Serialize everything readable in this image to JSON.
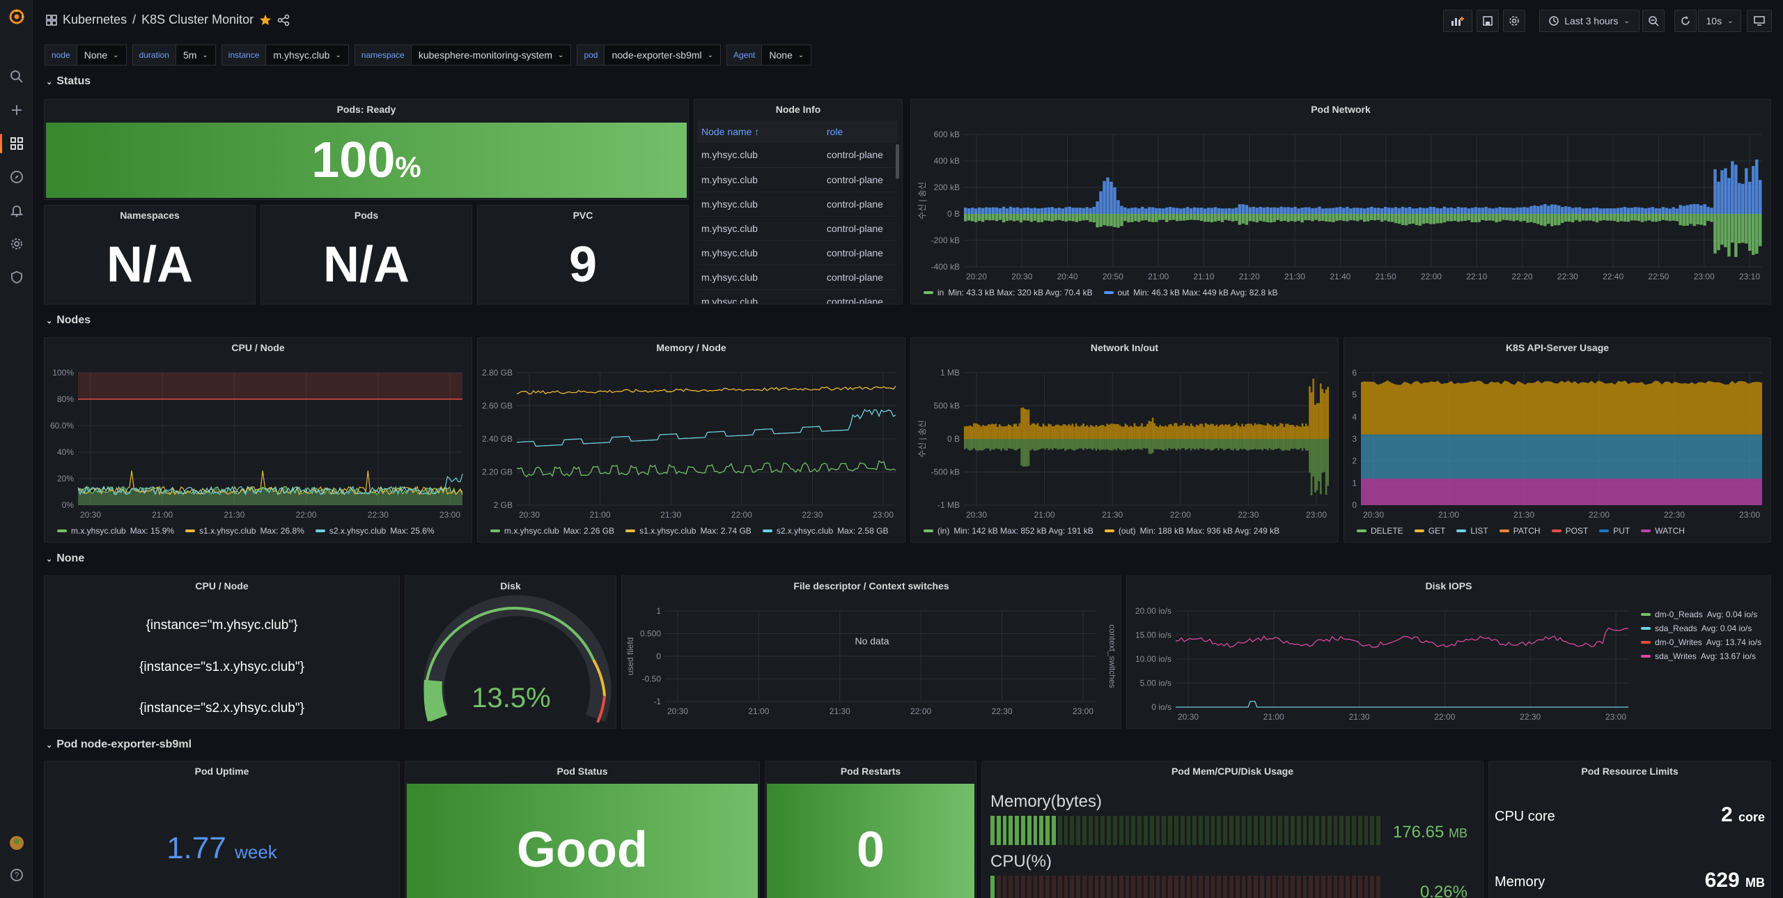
{
  "breadcrumb": {
    "folder": "Kubernetes",
    "sep": "/",
    "title": "K8S Cluster Monitor"
  },
  "toolbar": {
    "time_range": "Last 3 hours",
    "refresh": "10s"
  },
  "variables": [
    {
      "label": "node",
      "value": "None"
    },
    {
      "label": "duration",
      "value": "5m"
    },
    {
      "label": "instance",
      "value": "m.yhsyc.club"
    },
    {
      "label": "namespace",
      "value": "kubesphere-monitoring-system"
    },
    {
      "label": "pod",
      "value": "node-exporter-sb9ml"
    },
    {
      "label": "Agent",
      "value": "None"
    }
  ],
  "rows": {
    "status": "Status",
    "nodes": "Nodes",
    "none": "None",
    "pod": "Pod node-exporter-sb9ml"
  },
  "status": {
    "pods_ready": {
      "title": "Pods: Ready",
      "value": "100",
      "unit": "%"
    },
    "namespaces": {
      "title": "Namespaces",
      "value": "N/A"
    },
    "pods": {
      "title": "Pods",
      "value": "N/A"
    },
    "pvc": {
      "title": "PVC",
      "value": "9"
    },
    "node_info": {
      "title": "Node Info",
      "headers": [
        "Node name ↑",
        "role"
      ],
      "rows": [
        [
          "m.yhsyc.club",
          "control-plane"
        ],
        [
          "m.yhsyc.club",
          "control-plane"
        ],
        [
          "m.yhsyc.club",
          "control-plane"
        ],
        [
          "m.yhsyc.club",
          "control-plane"
        ],
        [
          "m.yhsyc.club",
          "control-plane"
        ],
        [
          "m.yhsyc.club",
          "control-plane"
        ],
        [
          "m.yhsyc.club",
          "control-plane"
        ]
      ]
    },
    "pod_network": {
      "title": "Pod Network",
      "y_label": "수신 | 송신",
      "y_ticks": [
        "600 kB",
        "400 kB",
        "200 kB",
        "0 B",
        "-200 kB",
        "-400 kB"
      ],
      "x_ticks": [
        "20:20",
        "20:30",
        "20:40",
        "20:50",
        "21:00",
        "21:10",
        "21:20",
        "21:30",
        "21:40",
        "21:50",
        "22:00",
        "22:10",
        "22:20",
        "22:30",
        "22:40",
        "22:50",
        "23:00",
        "23:10"
      ],
      "legend": [
        {
          "name": "in",
          "stats": "Min: 43.3 kB  Max: 320 kB  Avg: 70.4 kB",
          "color": "#73bf69"
        },
        {
          "name": "out",
          "stats": "Min: 46.3 kB  Max: 449 kB  Avg: 82.8 kB",
          "color": "#5794f2"
        }
      ]
    }
  },
  "nodes": {
    "cpu": {
      "title": "CPU / Node",
      "y_ticks": [
        "100%",
        "80%",
        "60.0%",
        "40%",
        "20%",
        "0%"
      ],
      "x_ticks": [
        "20:30",
        "21:00",
        "21:30",
        "22:00",
        "22:30",
        "23:00"
      ],
      "legend": [
        {
          "name": "m.x.yhsyc.club",
          "stats": "Max: 15.9%",
          "color": "#73bf69"
        },
        {
          "name": "s1.x.yhsyc.club",
          "stats": "Max: 26.8%",
          "color": "#eab839"
        },
        {
          "name": "s2.x.yhsyc.club",
          "stats": "Max: 25.6%",
          "color": "#6ed0e0"
        }
      ]
    },
    "memory": {
      "title": "Memory / Node",
      "y_ticks": [
        "2.80 GB",
        "2.60 GB",
        "2.40 GB",
        "2.20 GB",
        "2 GB"
      ],
      "x_ticks": [
        "20:30",
        "21:00",
        "21:30",
        "22:00",
        "22:30",
        "23:00"
      ],
      "legend": [
        {
          "name": "m.x.yhsyc.club",
          "stats": "Max: 2.26 GB",
          "color": "#73bf69"
        },
        {
          "name": "s1.x.yhsyc.club",
          "stats": "Max: 2.74 GB",
          "color": "#eab839"
        },
        {
          "name": "s2.x.yhsyc.club",
          "stats": "Max: 2.58 GB",
          "color": "#6ed0e0"
        }
      ]
    },
    "network": {
      "title": "Network In/out",
      "y_label": "수신 | 송신",
      "y_ticks": [
        "1 MB",
        "500 kB",
        "0 B",
        "-500 kB",
        "-1 MB"
      ],
      "x_ticks": [
        "20:30",
        "21:00",
        "21:30",
        "22:00",
        "22:30",
        "23:00"
      ],
      "legend": [
        {
          "name": "(in)",
          "stats": "Min: 142 kB  Max: 852 kB  Avg: 191 kB",
          "color": "#73bf69"
        },
        {
          "name": "(out)",
          "stats": "Min: 188 kB  Max: 936 kB  Avg: 249 kB",
          "color": "#eab839"
        }
      ]
    },
    "api": {
      "title": "K8S API-Server Usage",
      "y_ticks": [
        "6",
        "5",
        "4",
        "3",
        "2",
        "1",
        "0"
      ],
      "x_ticks": [
        "20:30",
        "21:00",
        "21:30",
        "22:00",
        "22:30",
        "23:00"
      ],
      "legend": [
        {
          "name": "DELETE",
          "color": "#73bf69"
        },
        {
          "name": "GET",
          "color": "#eab839"
        },
        {
          "name": "LIST",
          "color": "#6ed0e0"
        },
        {
          "name": "PATCH",
          "color": "#ef843c"
        },
        {
          "name": "POST",
          "color": "#e24d42"
        },
        {
          "name": "PUT",
          "color": "#1f78c1"
        },
        {
          "name": "WATCH",
          "color": "#ba43a9"
        }
      ]
    }
  },
  "none_row": {
    "cpu_node": {
      "title": "CPU / Node",
      "items": [
        "{instance=\"m.yhsyc.club\"}",
        "{instance=\"s1.x.yhsyc.club\"}",
        "{instance=\"s2.x.yhsyc.club\"}"
      ]
    },
    "disk": {
      "title": "Disk",
      "value": "13.5%"
    },
    "fd": {
      "title": "File descriptor / Context switches",
      "no_data": "No data",
      "y_left": "used filefd",
      "y_right": "context_switches",
      "y_ticks": [
        "1",
        "0.500",
        "0",
        "-0.50",
        "-1"
      ],
      "x_ticks": [
        "20:30",
        "21:00",
        "21:30",
        "22:00",
        "22:30",
        "23:00"
      ]
    },
    "iops": {
      "title": "Disk IOPS",
      "y_ticks": [
        "20.00 io/s",
        "15.00 io/s",
        "10.00 io/s",
        "5.00 io/s",
        "0 io/s"
      ],
      "x_ticks": [
        "20:30",
        "21:00",
        "21:30",
        "22:00",
        "22:30",
        "23:00"
      ],
      "legend": [
        {
          "name": "dm-0_Reads",
          "stats": "Avg: 0.04 io/s",
          "color": "#73bf69"
        },
        {
          "name": "sda_Reads",
          "stats": "Avg: 0.04 io/s",
          "color": "#6ed0e0"
        },
        {
          "name": "dm-0_Writes",
          "stats": "Avg: 13.74 io/s",
          "color": "#e24d42"
        },
        {
          "name": "sda_Writes",
          "stats": "Avg: 13.67 io/s",
          "color": "#d44a9a"
        }
      ]
    }
  },
  "pod_row": {
    "uptime": {
      "title": "Pod Uptime",
      "value": "1.77",
      "unit": "week"
    },
    "status": {
      "title": "Pod Status",
      "value": "Good"
    },
    "restarts": {
      "title": "Pod Restarts",
      "value": "0"
    },
    "usage": {
      "title": "Pod Mem/CPU/Disk Usage",
      "mem_label": "Memory(bytes)",
      "mem_value": "176.65",
      "mem_unit": "MB",
      "mem_fill": 0.17,
      "cpu_label": "CPU(%)",
      "cpu_value": "0.26%",
      "cpu_fill": 0.02
    },
    "limits": {
      "title": "Pod Resource Limits",
      "cpu_label": "CPU core",
      "cpu_value": "2",
      "cpu_unit": "core",
      "mem_label": "Memory",
      "mem_value": "629",
      "mem_unit": "MB"
    }
  }
}
